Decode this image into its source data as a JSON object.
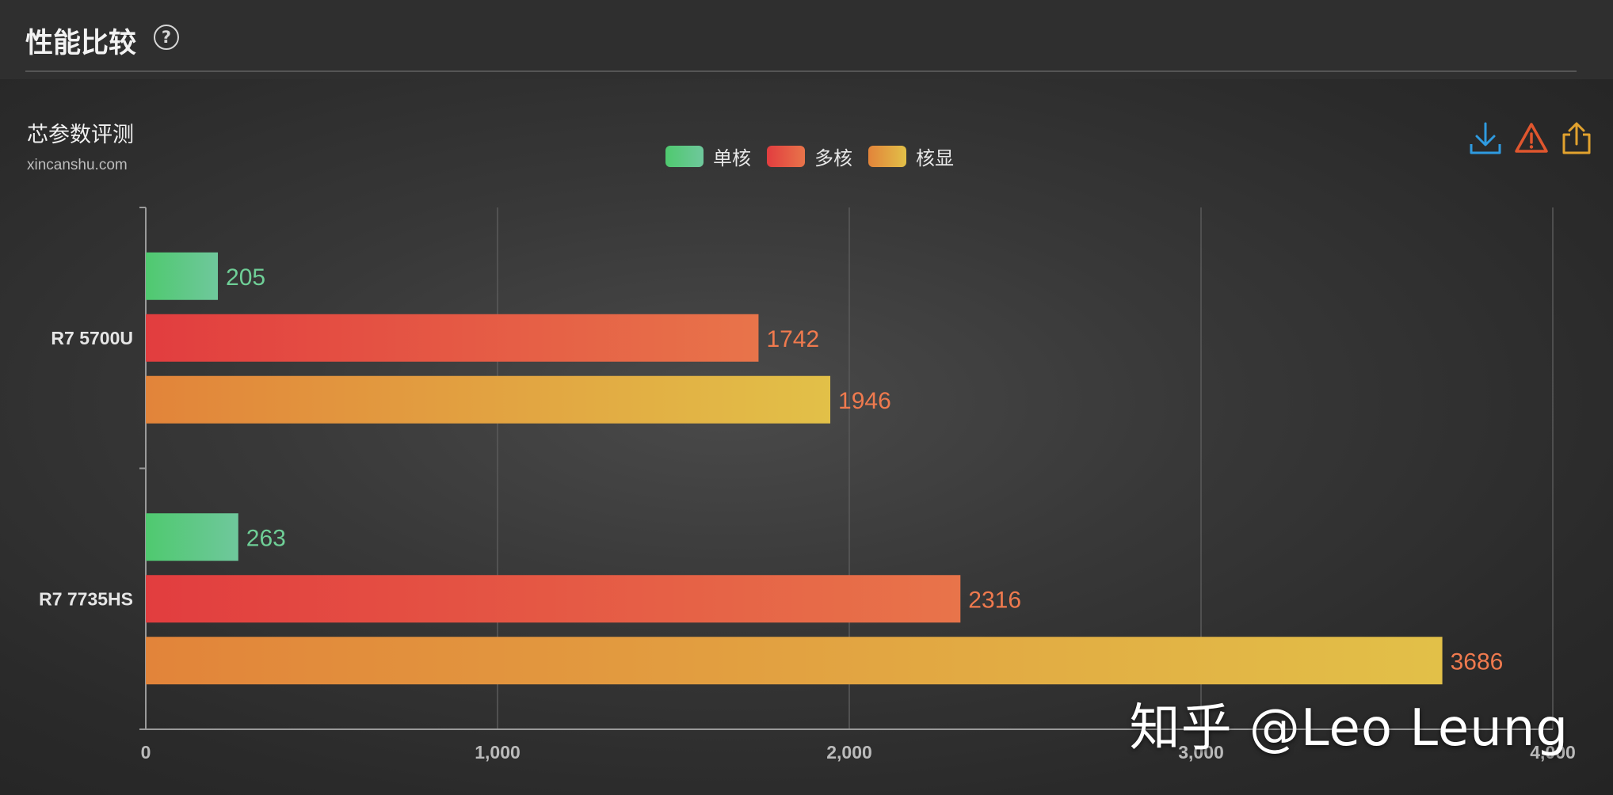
{
  "header": {
    "title": "性能比较",
    "help_icon": "question-circle-icon"
  },
  "brand": {
    "name": "芯参数评测",
    "url": "xincanshu.com"
  },
  "toolbar": {
    "download_icon": "download-icon",
    "report_icon": "warning-triangle-icon",
    "share_icon": "share-icon"
  },
  "watermark": "知乎 @Leo Leung",
  "chart_data": {
    "type": "bar",
    "orientation": "horizontal",
    "categories": [
      "R7 5700U",
      "R7 7735HS"
    ],
    "series": [
      {
        "name": "单核",
        "values": [
          205,
          263
        ],
        "color_start": "#4fc96f",
        "color_end": "#6fc89c",
        "label_color": "#6fcf97"
      },
      {
        "name": "多核",
        "values": [
          1742,
          2316
        ],
        "color_start": "#e23d3f",
        "color_end": "#e8744a",
        "label_color": "#f07a4e"
      },
      {
        "name": "核显",
        "values": [
          1946,
          3686
        ],
        "color_start": "#e2843a",
        "color_end": "#e2c048",
        "label_color": "#f07a4e"
      }
    ],
    "xlim": [
      0,
      4000
    ],
    "xticks": [
      "0",
      "1,000",
      "2,000",
      "3,000",
      "4,000"
    ],
    "grid": true,
    "legend": "top-center"
  }
}
